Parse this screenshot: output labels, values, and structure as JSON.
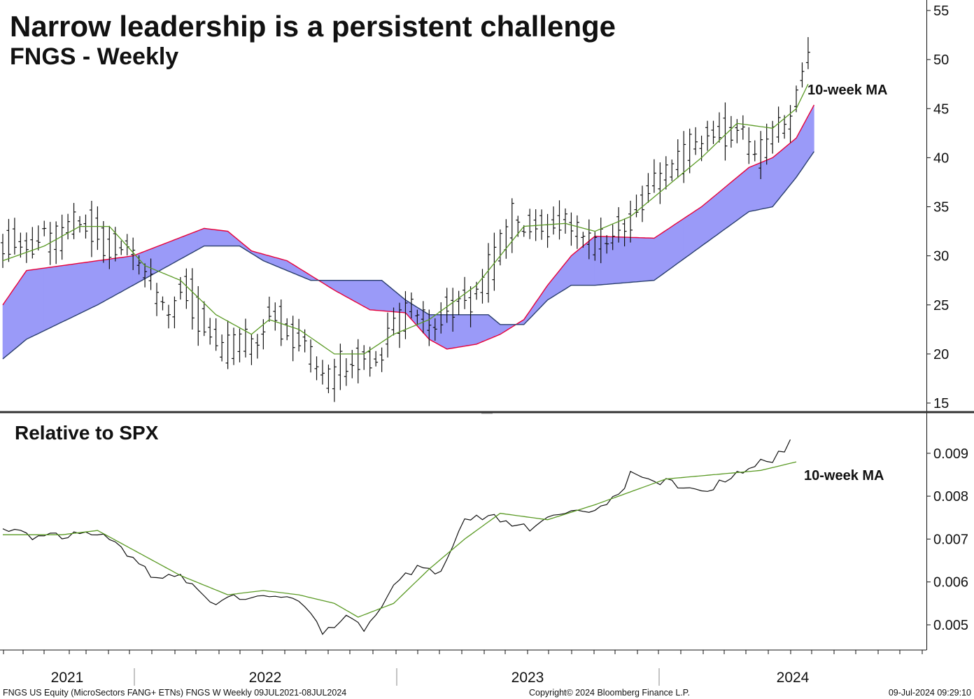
{
  "title": "Narrow leadership is a persistent challenge",
  "subtitle": "FNGS - Weekly",
  "lower_panel_label": "Relative to SPX",
  "upper_ma_label": "10-week MA",
  "lower_ma_label": "10-week MA",
  "footer": {
    "left": "FNGS US Equity (MicroSectors FANG+ ETNs) FNGS W  Weekly 09JUL2021-08JUL2024",
    "center": "Copyright© 2024 Bloomberg Finance L.P.",
    "right": "09-Jul-2024 09:29:10"
  },
  "colors": {
    "cloud_fill": "#9a9af8",
    "cloud_span_a": "#e8003a",
    "cloud_span_b": "#2a3e6e",
    "ma_line": "#5a9a24",
    "price": "#111111"
  },
  "chart_data": [
    {
      "type": "ohlc",
      "frequency": "weekly",
      "x_ticks": [
        "2021",
        "2022",
        "2023",
        "2024"
      ],
      "ylim": [
        14.5,
        56
      ],
      "y_ticks": [
        15,
        20,
        25,
        30,
        35,
        40,
        45,
        50,
        55
      ],
      "price_path": [
        [
          0,
          32
        ],
        [
          8,
          32
        ],
        [
          13,
          35
        ],
        [
          17,
          32
        ],
        [
          22,
          31
        ],
        [
          27,
          25
        ],
        [
          30,
          28
        ],
        [
          36,
          21
        ],
        [
          42,
          22
        ],
        [
          45,
          25
        ],
        [
          48,
          23
        ],
        [
          54,
          18.5
        ],
        [
          60,
          20.5
        ],
        [
          63,
          20
        ],
        [
          68,
          25.5
        ],
        [
          72,
          24
        ],
        [
          77,
          26.5
        ],
        [
          80,
          26.5
        ],
        [
          86,
          35
        ],
        [
          90,
          34
        ],
        [
          95,
          33.5
        ],
        [
          100,
          32
        ],
        [
          106,
          35
        ],
        [
          110,
          38
        ],
        [
          118,
          43.5
        ],
        [
          124,
          43
        ],
        [
          127,
          41
        ],
        [
          133,
          46
        ],
        [
          136,
          52.5
        ]
      ],
      "series": [
        {
          "name": "10-week MA",
          "values_path": [
            [
              0,
              29.5
            ],
            [
              7,
              31
            ],
            [
              13,
              33
            ],
            [
              18,
              33
            ],
            [
              24,
              29
            ],
            [
              30,
              27.5
            ],
            [
              36,
              24
            ],
            [
              42,
              22
            ],
            [
              45,
              23.5
            ],
            [
              50,
              22.5
            ],
            [
              56,
              20
            ],
            [
              61,
              20
            ],
            [
              66,
              22
            ],
            [
              72,
              23.5
            ],
            [
              80,
              27
            ],
            [
              88,
              33
            ],
            [
              95,
              33.3
            ],
            [
              100,
              32.5
            ],
            [
              106,
              34
            ],
            [
              112,
              37
            ],
            [
              118,
              40
            ],
            [
              124,
              43.5
            ],
            [
              130,
              43
            ],
            [
              134,
              45
            ],
            [
              136,
              47.5
            ]
          ]
        },
        {
          "name": "",
          "values_path": [
            [
              0,
              25
            ],
            [
              4,
              28.5
            ],
            [
              22,
              30
            ],
            [
              34,
              32.8
            ],
            [
              38,
              32.5
            ],
            [
              42,
              30.5
            ],
            [
              48,
              29.5
            ],
            [
              56,
              26.5
            ],
            [
              62,
              24.5
            ],
            [
              68,
              24.2
            ],
            [
              72,
              21.5
            ],
            [
              75,
              20.5
            ],
            [
              80,
              21
            ],
            [
              84,
              22
            ],
            [
              88,
              23.5
            ],
            [
              92,
              27
            ],
            [
              96,
              30
            ],
            [
              100,
              32
            ],
            [
              110,
              31.8
            ],
            [
              118,
              35
            ],
            [
              126,
              39
            ],
            [
              130,
              40
            ],
            [
              134,
              42
            ],
            [
              138,
              46.5
            ]
          ]
        },
        {
          "name": "",
          "values_path": [
            [
              0,
              19.5
            ],
            [
              4,
              21.5
            ],
            [
              16,
              25
            ],
            [
              34,
              31
            ],
            [
              40,
              31
            ],
            [
              44,
              29.5
            ],
            [
              52,
              27.5
            ],
            [
              64,
              27.5
            ],
            [
              68,
              25.5
            ],
            [
              72,
              24
            ],
            [
              82,
              24
            ],
            [
              84,
              23
            ],
            [
              88,
              23
            ],
            [
              92,
              25.5
            ],
            [
              96,
              27
            ],
            [
              100,
              27
            ],
            [
              110,
              27.5
            ],
            [
              118,
              31
            ],
            [
              126,
              34.5
            ],
            [
              130,
              35
            ],
            [
              134,
              38
            ],
            [
              138,
              41.5
            ]
          ]
        }
      ]
    },
    {
      "type": "line",
      "frequency": "weekly",
      "title": "Relative to SPX",
      "x_ticks": [
        "2021",
        "2022",
        "2023",
        "2024"
      ],
      "ylim": [
        0.00445,
        0.00975
      ],
      "y_ticks": [
        0.005,
        0.006,
        0.007,
        0.008,
        0.009
      ],
      "y_tick_labels": [
        "0.005",
        "0.006",
        "0.007",
        "0.008",
        "0.009"
      ],
      "series": [
        {
          "name": "",
          "values_path": [
            [
              0,
              0.00738
            ],
            [
              6,
              0.007
            ],
            [
              14,
              0.0074
            ],
            [
              17,
              0.0071
            ],
            [
              24,
              0.0063
            ],
            [
              30,
              0.0063
            ],
            [
              36,
              0.00545
            ],
            [
              40,
              0.0057
            ],
            [
              45,
              0.0058
            ],
            [
              50,
              0.00555
            ],
            [
              54,
              0.00495
            ],
            [
              58,
              0.00535
            ],
            [
              62,
              0.005
            ],
            [
              66,
              0.0059
            ],
            [
              70,
              0.0065
            ],
            [
              74,
              0.0064
            ],
            [
              78,
              0.0075
            ],
            [
              84,
              0.00755
            ],
            [
              90,
              0.0074
            ],
            [
              96,
              0.0076
            ],
            [
              100,
              0.0078
            ],
            [
              106,
              0.0085
            ],
            [
              110,
              0.0083
            ],
            [
              116,
              0.0084
            ],
            [
              120,
              0.0083
            ],
            [
              126,
              0.0086
            ],
            [
              130,
              0.009
            ],
            [
              133,
              0.0094
            ]
          ]
        },
        {
          "name": "10-week MA",
          "values_path": [
            [
              0,
              0.0071
            ],
            [
              10,
              0.0071
            ],
            [
              16,
              0.0072
            ],
            [
              24,
              0.0066
            ],
            [
              30,
              0.00615
            ],
            [
              38,
              0.0057
            ],
            [
              44,
              0.0058
            ],
            [
              50,
              0.0057
            ],
            [
              56,
              0.0055
            ],
            [
              60,
              0.00518
            ],
            [
              66,
              0.0055
            ],
            [
              72,
              0.0063
            ],
            [
              78,
              0.007
            ],
            [
              84,
              0.0076
            ],
            [
              92,
              0.00745
            ],
            [
              100,
              0.0078
            ],
            [
              106,
              0.0081
            ],
            [
              112,
              0.0084
            ],
            [
              120,
              0.0085
            ],
            [
              128,
              0.0086
            ],
            [
              134,
              0.0088
            ]
          ]
        }
      ]
    }
  ]
}
